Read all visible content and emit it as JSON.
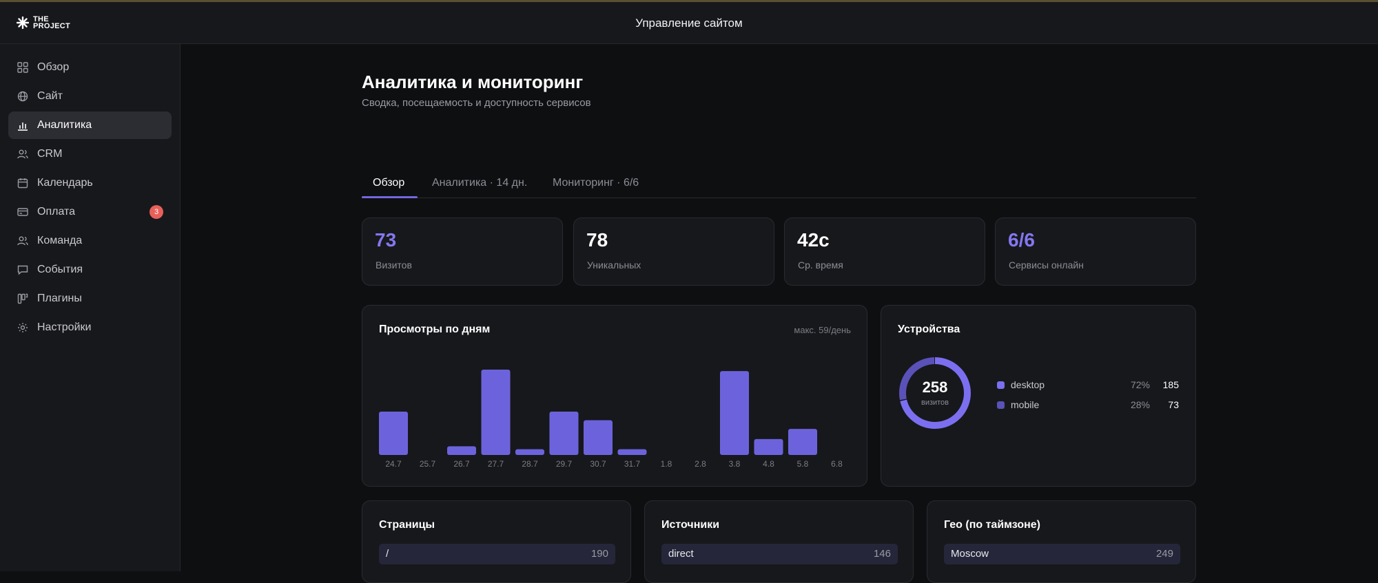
{
  "brand": {
    "logo_line1": "THE",
    "logo_line2": "PROJECT"
  },
  "topbar": {
    "title": "Управление сайтом"
  },
  "sidebar": {
    "items": [
      {
        "label": "Обзор",
        "icon": "grid-icon"
      },
      {
        "label": "Сайт",
        "icon": "globe-icon"
      },
      {
        "label": "Аналитика",
        "icon": "bar-chart-icon",
        "active": true
      },
      {
        "label": "CRM",
        "icon": "users-icon"
      },
      {
        "label": "Календарь",
        "icon": "calendar-icon"
      },
      {
        "label": "Оплата",
        "icon": "credit-card-icon",
        "badge": "3"
      },
      {
        "label": "Команда",
        "icon": "team-icon"
      },
      {
        "label": "События",
        "icon": "message-icon"
      },
      {
        "label": "Плагины",
        "icon": "plugin-icon"
      },
      {
        "label": "Настройки",
        "icon": "settings-icon"
      }
    ]
  },
  "page": {
    "title": "Аналитика и мониторинг",
    "subtitle": "Сводка, посещаемость и доступность сервисов"
  },
  "tabs": [
    {
      "label": "Обзор",
      "active": true
    },
    {
      "label": "Аналитика · 14 дн."
    },
    {
      "label": "Мониторинг · 6/6"
    }
  ],
  "stats": [
    {
      "value": "73",
      "label": "Визитов",
      "accent": true
    },
    {
      "value": "78",
      "label": "Уникальных"
    },
    {
      "value": "42с",
      "label": "Ср. время"
    },
    {
      "value": "6/6",
      "label": "Сервисы онлайн",
      "accent": true
    }
  ],
  "views_card": {
    "title": "Просмотры по дням",
    "note": "макс. 59/день"
  },
  "chart_data": {
    "type": "bar",
    "categories": [
      "24.7",
      "25.7",
      "26.7",
      "27.7",
      "28.7",
      "29.7",
      "30.7",
      "31.7",
      "1.8",
      "2.8",
      "3.8",
      "4.8",
      "5.8",
      "6.8"
    ],
    "values": [
      30,
      0,
      6,
      59,
      4,
      30,
      24,
      4,
      0,
      0,
      58,
      11,
      18,
      0
    ],
    "ylim": [
      0,
      59
    ],
    "bar_color": "#6c63dc"
  },
  "devices": {
    "title": "Устройства",
    "total": "258",
    "total_label": "визитов",
    "items": [
      {
        "name": "desktop",
        "pct": "72%",
        "count": "185",
        "color": "#7b6ff0"
      },
      {
        "name": "mobile",
        "pct": "28%",
        "count": "73",
        "color": "#5a52b8"
      }
    ]
  },
  "pages_card": {
    "title": "Страницы",
    "rows": [
      {
        "label": "/",
        "value": "190"
      }
    ]
  },
  "sources_card": {
    "title": "Источники",
    "rows": [
      {
        "label": "direct",
        "value": "146"
      }
    ]
  },
  "geo_card": {
    "title": "Гео (по таймзоне)",
    "rows": [
      {
        "label": "Moscow",
        "value": "249"
      }
    ]
  },
  "colors": {
    "accent": "#7367e0",
    "badge": "#e8605a",
    "bg": "#0e0f11",
    "panel": "#17181c"
  }
}
